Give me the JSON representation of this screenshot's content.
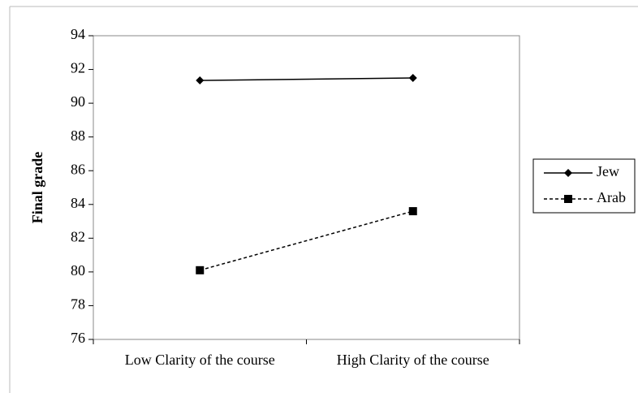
{
  "chart_data": {
    "type": "line",
    "y_label": "Final grade",
    "categories": [
      "Low Clarity of the course",
      "High Clarity of the course"
    ],
    "series": [
      {
        "name": "Jew",
        "color": "#000000",
        "linestyle": "solid",
        "marker": "diamond",
        "values": [
          91.35,
          91.5
        ]
      },
      {
        "name": "Arab",
        "color": "#000000",
        "linestyle": "dashed",
        "marker": "square",
        "values": [
          80.1,
          83.6
        ]
      }
    ],
    "ylim": [
      76,
      94
    ],
    "yticks": [
      76,
      78,
      80,
      82,
      84,
      86,
      88,
      90,
      92,
      94
    ],
    "grid": false,
    "legend": "right"
  }
}
